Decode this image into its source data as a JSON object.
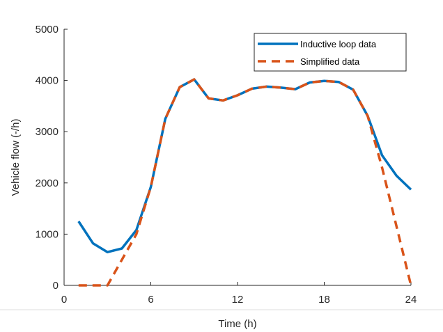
{
  "chart_data": {
    "type": "line",
    "xlabel": "Time (h)",
    "ylabel": "Vehicle flow (-/h)",
    "xlim": [
      0,
      24
    ],
    "ylim": [
      0,
      5000
    ],
    "xticks": [
      0,
      6,
      12,
      18,
      24
    ],
    "yticks": [
      0,
      1000,
      2000,
      3000,
      4000,
      5000
    ],
    "grid": false,
    "legend_position": "top-right",
    "series": [
      {
        "name": "Inductive loop data",
        "style": "solid",
        "color": "#0072BD",
        "x": [
          1,
          2,
          3,
          4,
          5,
          6,
          7,
          8,
          9,
          10,
          11,
          12,
          13,
          14,
          15,
          16,
          17,
          18,
          19,
          20,
          21,
          22,
          23,
          24
        ],
        "y": [
          1250,
          820,
          650,
          720,
          1080,
          1920,
          3250,
          3870,
          4020,
          3650,
          3610,
          3710,
          3840,
          3880,
          3860,
          3830,
          3960,
          3990,
          3970,
          3820,
          3310,
          2540,
          2140,
          1870
        ]
      },
      {
        "name": "Simplified data",
        "style": "dashed",
        "color": "#D95319",
        "x": [
          1,
          2,
          3,
          4,
          5,
          6,
          7,
          8,
          9,
          10,
          11,
          12,
          13,
          14,
          15,
          16,
          17,
          18,
          19,
          20,
          21,
          22,
          23,
          24
        ],
        "y": [
          0,
          0,
          0,
          500,
          1000,
          1920,
          3250,
          3870,
          4020,
          3650,
          3610,
          3710,
          3840,
          3880,
          3860,
          3830,
          3960,
          3990,
          3970,
          3820,
          3310,
          2300,
          1150,
          0
        ]
      }
    ]
  }
}
